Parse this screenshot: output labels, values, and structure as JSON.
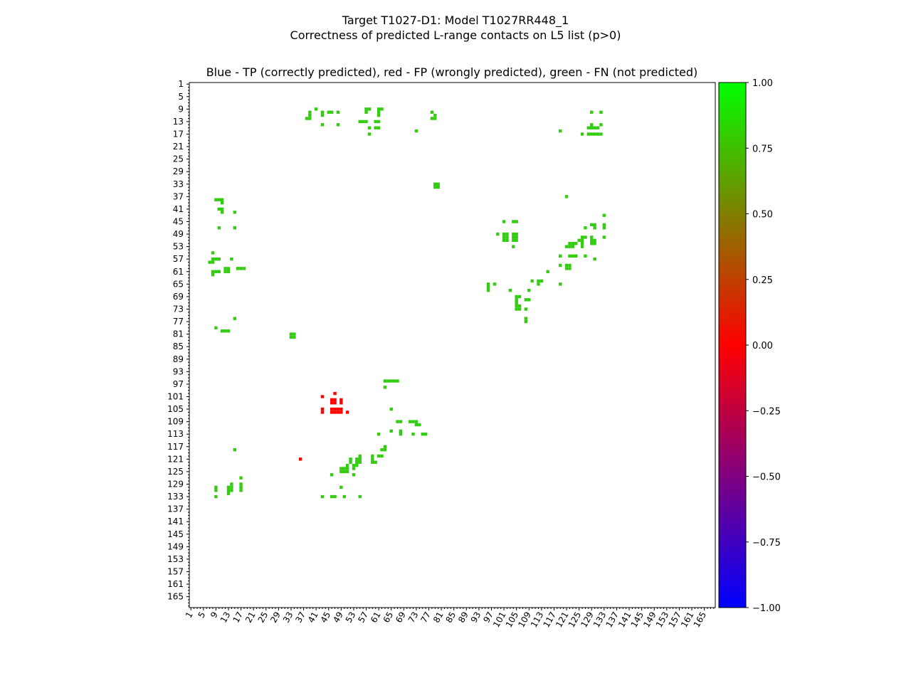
{
  "chart_data": {
    "type": "heatmap",
    "title": "Target T1027-D1: Model T1027RR448_1",
    "subtitle": "Correctness of predicted L-range contacts on L5 list (p>0)",
    "plot_title": "Blue - TP (correctly predicted), red - FP (wrongly predicted), green - FN (not predicted)",
    "xlabel": "",
    "ylabel": "",
    "axis_range": [
      1,
      168
    ],
    "x_tick_labels": [
      "1",
      "5",
      "9",
      "13",
      "17",
      "21",
      "25",
      "29",
      "33",
      "37",
      "41",
      "45",
      "49",
      "53",
      "57",
      "61",
      "65",
      "69",
      "73",
      "77",
      "81",
      "85",
      "89",
      "93",
      "97",
      "101",
      "105",
      "109",
      "113",
      "117",
      "121",
      "125",
      "129",
      "133",
      "137",
      "141",
      "145",
      "149",
      "153",
      "157",
      "161",
      "165"
    ],
    "y_tick_labels": [
      "1",
      "5",
      "9",
      "13",
      "17",
      "21",
      "25",
      "29",
      "33",
      "37",
      "41",
      "45",
      "49",
      "53",
      "57",
      "61",
      "65",
      "69",
      "73",
      "77",
      "81",
      "85",
      "89",
      "93",
      "97",
      "101",
      "105",
      "109",
      "113",
      "117",
      "121",
      "125",
      "129",
      "133",
      "137",
      "141",
      "145",
      "149",
      "153",
      "157",
      "161",
      "165"
    ],
    "colorbar": {
      "min": -1.0,
      "max": 1.0,
      "tick_labels": [
        "1.00",
        "0.75",
        "0.50",
        "0.25",
        "0.00",
        "−0.25",
        "−0.50",
        "−0.75",
        "−1.00"
      ],
      "colors": {
        "low": "#0000ff",
        "mid": "#ff0000",
        "high": "#00ff00"
      }
    },
    "cell_colors": {
      "fn": "#33cc11",
      "fp": "#ff0000"
    },
    "fn_cells": [
      [
        9,
        41
      ],
      [
        9,
        57
      ],
      [
        9,
        58
      ],
      [
        9,
        61
      ],
      [
        9,
        62
      ],
      [
        10,
        39
      ],
      [
        10,
        43
      ],
      [
        10,
        45
      ],
      [
        10,
        46
      ],
      [
        10,
        48
      ],
      [
        10,
        57
      ],
      [
        10,
        61
      ],
      [
        10,
        78
      ],
      [
        10,
        129
      ],
      [
        10,
        132
      ],
      [
        11,
        39
      ],
      [
        11,
        43
      ],
      [
        11,
        61
      ],
      [
        11,
        79
      ],
      [
        12,
        38
      ],
      [
        12,
        39
      ],
      [
        12,
        78
      ],
      [
        12,
        79
      ],
      [
        13,
        55
      ],
      [
        13,
        56
      ],
      [
        13,
        57
      ],
      [
        13,
        60
      ],
      [
        13,
        61
      ],
      [
        14,
        43
      ],
      [
        14,
        48
      ],
      [
        14,
        129
      ],
      [
        14,
        132
      ],
      [
        15,
        58
      ],
      [
        15,
        60
      ],
      [
        15,
        61
      ],
      [
        15,
        128
      ],
      [
        15,
        129
      ],
      [
        15,
        130
      ],
      [
        15,
        131
      ],
      [
        16,
        73
      ],
      [
        16,
        119
      ],
      [
        17,
        58
      ],
      [
        17,
        126
      ],
      [
        17,
        128
      ],
      [
        17,
        129
      ],
      [
        17,
        130
      ],
      [
        17,
        131
      ],
      [
        17,
        132
      ],
      [
        33,
        79
      ],
      [
        33,
        80
      ],
      [
        34,
        79
      ],
      [
        34,
        80
      ],
      [
        37,
        121
      ],
      [
        38,
        9
      ],
      [
        38,
        10
      ],
      [
        38,
        11
      ],
      [
        39,
        11
      ],
      [
        41,
        10
      ],
      [
        41,
        11
      ],
      [
        42,
        11
      ],
      [
        42,
        15
      ],
      [
        43,
        133
      ],
      [
        45,
        101
      ],
      [
        45,
        104
      ],
      [
        45,
        105
      ],
      [
        46,
        129
      ],
      [
        46,
        130
      ],
      [
        46,
        133
      ],
      [
        47,
        10
      ],
      [
        47,
        15
      ],
      [
        47,
        127
      ],
      [
        47,
        130
      ],
      [
        47,
        133
      ],
      [
        49,
        99
      ],
      [
        49,
        101
      ],
      [
        49,
        102
      ],
      [
        49,
        104
      ],
      [
        49,
        105
      ],
      [
        50,
        101
      ],
      [
        50,
        102
      ],
      [
        50,
        104
      ],
      [
        50,
        105
      ],
      [
        50,
        126
      ],
      [
        50,
        127
      ],
      [
        50,
        129
      ],
      [
        50,
        133
      ],
      [
        51,
        101
      ],
      [
        51,
        102
      ],
      [
        51,
        104
      ],
      [
        51,
        105
      ],
      [
        51,
        125
      ],
      [
        51,
        126
      ],
      [
        51,
        129
      ],
      [
        51,
        130
      ],
      [
        52,
        122
      ],
      [
        52,
        123
      ],
      [
        52,
        124
      ],
      [
        52,
        126
      ],
      [
        52,
        129
      ],
      [
        52,
        130
      ],
      [
        53,
        104
      ],
      [
        53,
        121
      ],
      [
        53,
        122
      ],
      [
        53,
        123
      ],
      [
        53,
        126
      ],
      [
        55,
        8
      ],
      [
        56,
        119
      ],
      [
        56,
        122
      ],
      [
        56,
        123
      ],
      [
        56,
        124
      ],
      [
        56,
        127
      ],
      [
        57,
        8
      ],
      [
        57,
        9
      ],
      [
        57,
        10
      ],
      [
        57,
        14
      ],
      [
        57,
        130
      ],
      [
        58,
        7
      ],
      [
        58,
        8
      ],
      [
        59,
        119
      ],
      [
        59,
        121
      ],
      [
        59,
        122
      ],
      [
        60,
        12
      ],
      [
        60,
        13
      ],
      [
        60,
        16
      ],
      [
        60,
        17
      ],
      [
        60,
        18
      ],
      [
        60,
        121
      ],
      [
        60,
        122
      ],
      [
        61,
        8
      ],
      [
        61,
        9
      ],
      [
        61,
        10
      ],
      [
        61,
        12
      ],
      [
        61,
        13
      ],
      [
        61,
        115
      ],
      [
        62,
        8
      ],
      [
        64,
        110
      ],
      [
        64,
        112
      ],
      [
        64,
        113
      ],
      [
        65,
        96
      ],
      [
        65,
        98
      ],
      [
        65,
        112
      ],
      [
        65,
        119
      ],
      [
        66,
        96
      ],
      [
        67,
        96
      ],
      [
        67,
        103
      ],
      [
        67,
        109
      ],
      [
        69,
        105
      ],
      [
        69,
        106
      ],
      [
        70,
        105
      ],
      [
        70,
        108
      ],
      [
        70,
        109
      ],
      [
        71,
        105
      ],
      [
        72,
        105
      ],
      [
        72,
        106
      ],
      [
        73,
        105
      ],
      [
        73,
        106
      ],
      [
        73,
        108
      ],
      [
        76,
        15
      ],
      [
        76,
        108
      ],
      [
        77,
        108
      ],
      [
        79,
        9
      ],
      [
        80,
        11
      ],
      [
        80,
        12
      ],
      [
        80,
        13
      ],
      [
        81,
        33
      ],
      [
        81,
        34
      ],
      [
        82,
        33
      ],
      [
        82,
        34
      ],
      [
        96,
        63
      ],
      [
        96,
        64
      ],
      [
        96,
        65
      ],
      [
        96,
        66
      ],
      [
        96,
        67
      ],
      [
        98,
        63
      ],
      [
        105,
        65
      ],
      [
        109,
        67
      ],
      [
        109,
        68
      ],
      [
        109,
        71
      ],
      [
        109,
        72
      ],
      [
        109,
        73
      ],
      [
        110,
        73
      ],
      [
        110,
        74
      ],
      [
        112,
        65
      ],
      [
        112,
        68
      ],
      [
        113,
        61
      ],
      [
        113,
        68
      ],
      [
        113,
        72
      ],
      [
        113,
        75
      ],
      [
        113,
        76
      ],
      [
        117,
        63
      ],
      [
        118,
        15
      ],
      [
        118,
        62
      ],
      [
        118,
        63
      ],
      [
        120,
        55
      ],
      [
        120,
        59
      ],
      [
        120,
        61
      ],
      [
        120,
        62
      ],
      [
        121,
        52
      ],
      [
        121,
        54
      ],
      [
        121,
        55
      ],
      [
        121,
        59
      ],
      [
        122,
        52
      ],
      [
        122,
        54
      ],
      [
        122,
        55
      ],
      [
        122,
        59
      ],
      [
        122,
        60
      ],
      [
        123,
        51
      ],
      [
        123,
        53
      ],
      [
        123,
        54
      ],
      [
        124,
        49
      ],
      [
        124,
        50
      ],
      [
        124,
        51
      ],
      [
        124,
        53
      ],
      [
        125,
        49
      ],
      [
        125,
        50
      ],
      [
        125,
        51
      ],
      [
        126,
        46
      ],
      [
        126,
        53
      ],
      [
        127,
        17
      ],
      [
        129,
        14
      ],
      [
        129,
        17
      ],
      [
        130,
        9
      ],
      [
        130,
        13
      ],
      [
        130,
        14
      ],
      [
        130,
        17
      ],
      [
        130,
        49
      ],
      [
        131,
        9
      ],
      [
        131,
        13
      ],
      [
        131,
        14
      ],
      [
        131,
        17
      ],
      [
        132,
        13
      ],
      [
        133,
        9
      ],
      [
        133,
        43
      ],
      [
        133,
        46
      ],
      [
        133,
        47
      ],
      [
        133,
        50
      ],
      [
        133,
        55
      ]
    ],
    "fp_cells": [
      [
        100,
        47
      ],
      [
        101,
        43
      ],
      [
        102,
        46
      ],
      [
        102,
        47
      ],
      [
        102,
        49
      ],
      [
        103,
        46
      ],
      [
        103,
        47
      ],
      [
        103,
        49
      ],
      [
        105,
        43
      ],
      [
        105,
        46
      ],
      [
        105,
        47
      ],
      [
        105,
        48
      ],
      [
        105,
        49
      ],
      [
        106,
        43
      ],
      [
        106,
        46
      ],
      [
        106,
        47
      ],
      [
        106,
        48
      ],
      [
        106,
        49
      ],
      [
        106,
        51
      ],
      [
        121,
        36
      ]
    ]
  }
}
